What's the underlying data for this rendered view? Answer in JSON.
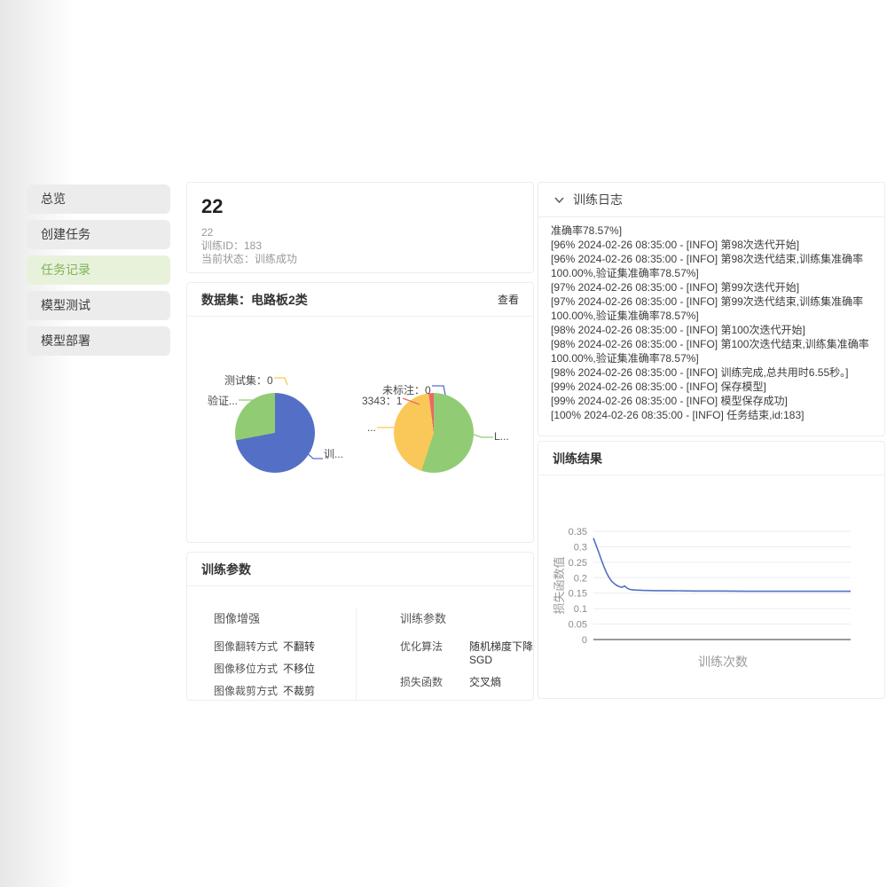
{
  "sidebar": {
    "items": [
      {
        "label": "总览",
        "active": false
      },
      {
        "label": "创建任务",
        "active": false
      },
      {
        "label": "任务记录",
        "active": true
      },
      {
        "label": "模型测试",
        "active": false
      },
      {
        "label": "模型部署",
        "active": false
      }
    ]
  },
  "task": {
    "title": "22",
    "name": "22",
    "train_id": "训练ID：183",
    "status": "当前状态：训练成功"
  },
  "dataset": {
    "header": "数据集：电路板2类",
    "view_label": "查看"
  },
  "params": {
    "header": "训练参数",
    "groups": [
      {
        "title": "图像增强",
        "rows": [
          {
            "label": "图像翻转方式",
            "value": "不翻转"
          },
          {
            "label": "图像移位方式",
            "value": "不移位"
          },
          {
            "label": "图像裁剪方式",
            "value": "不裁剪"
          }
        ]
      },
      {
        "title": "训练参数",
        "rows": [
          {
            "label": "优化算法",
            "value": "随机梯度下降SGD"
          },
          {
            "label": "损失函数",
            "value": "交叉熵"
          }
        ]
      }
    ]
  },
  "logs": {
    "header": "训练日志",
    "lines": [
      "准确率78.57%]",
      "[96% 2024-02-26 08:35:00 - [INFO] 第98次迭代开始]",
      "[96% 2024-02-26 08:35:00 - [INFO] 第98次迭代结束,训练集准确率100.00%,验证集准确率78.57%]",
      "[97% 2024-02-26 08:35:00 - [INFO] 第99次迭代开始]",
      "[97% 2024-02-26 08:35:00 - [INFO] 第99次迭代结束,训练集准确率100.00%,验证集准确率78.57%]",
      "[98% 2024-02-26 08:35:00 - [INFO] 第100次迭代开始]",
      "[98% 2024-02-26 08:35:00 - [INFO] 第100次迭代结束,训练集准确率100.00%,验证集准确率78.57%]",
      "[98% 2024-02-26 08:35:00 - [INFO] 训练完成,总共用时6.55秒。]",
      "[99% 2024-02-26 08:35:00 - [INFO] 保存模型]",
      "[99% 2024-02-26 08:35:00 - [INFO] 模型保存成功]",
      "[100% 2024-02-26 08:35:00 - [INFO] 任务结束,id:183]"
    ]
  },
  "results": {
    "header": "训练结果"
  },
  "colors": {
    "palette_blue": "#5470c6",
    "palette_green": "#91cc75",
    "palette_yellow": "#fac858",
    "palette_red": "#ee6666",
    "active_green_text": "#7eb357",
    "active_green_bg": "#e8f2db",
    "loss_line": "#5470c6"
  },
  "chart_data": [
    {
      "type": "pie",
      "name": "dataset-split-pie",
      "slices": [
        {
          "display": "训...",
          "color": "#5470c6",
          "est_fraction": 0.72
        },
        {
          "display": "验证...",
          "color": "#91cc75",
          "est_fraction": 0.28
        },
        {
          "display": "测试集：0",
          "color": "#fac858",
          "est_fraction": 0,
          "value": 0
        }
      ]
    },
    {
      "type": "pie",
      "name": "label-distribution-pie",
      "slices": [
        {
          "display": "L...",
          "color": "#91cc75",
          "est_fraction": 0.55
        },
        {
          "display": "...",
          "color": "#fac858",
          "est_fraction": 0.43
        },
        {
          "display": "3343：1",
          "color": "#ee6666",
          "est_fraction": 0.02,
          "value": 1
        },
        {
          "display": "未标注：0",
          "color": "#5470c6",
          "est_fraction": 0,
          "value": 0
        }
      ]
    },
    {
      "type": "line",
      "name": "loss-curve",
      "xlabel": "训练次数",
      "ylabel": "损失函数值",
      "xlim": [
        1,
        100
      ],
      "ylim": [
        0,
        0.35
      ],
      "ytick_labels": [
        "0",
        "0.05",
        "0.1",
        "0.15",
        "0.2",
        "0.25",
        "0.3",
        "0.35"
      ],
      "yticks": [
        0,
        0.05,
        0.1,
        0.15,
        0.2,
        0.25,
        0.3,
        0.35
      ],
      "grid": true,
      "color": "#5470c6",
      "points": [
        [
          1,
          0.328
        ],
        [
          2,
          0.306
        ],
        [
          3,
          0.283
        ],
        [
          4,
          0.259
        ],
        [
          5,
          0.237
        ],
        [
          6,
          0.217
        ],
        [
          7,
          0.201
        ],
        [
          8,
          0.189
        ],
        [
          9,
          0.181
        ],
        [
          10,
          0.175
        ],
        [
          11,
          0.171
        ],
        [
          12,
          0.169
        ],
        [
          13,
          0.173
        ],
        [
          14,
          0.166
        ],
        [
          15,
          0.162
        ],
        [
          17,
          0.16
        ],
        [
          20,
          0.159
        ],
        [
          25,
          0.158
        ],
        [
          30,
          0.158
        ],
        [
          40,
          0.157
        ],
        [
          50,
          0.157
        ],
        [
          60,
          0.156
        ],
        [
          70,
          0.156
        ],
        [
          80,
          0.156
        ],
        [
          90,
          0.156
        ],
        [
          100,
          0.156
        ]
      ]
    }
  ]
}
